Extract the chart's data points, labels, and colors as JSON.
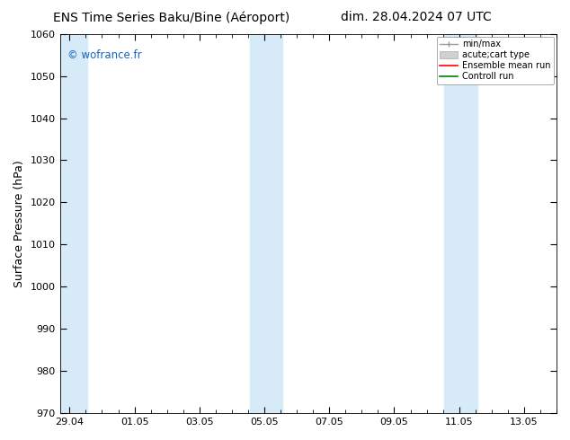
{
  "title_left": "ENS Time Series Baku/Bine (Aéroport)",
  "title_right": "dim. 28.04.2024 07 UTC",
  "ylabel": "Surface Pressure (hPa)",
  "ylim": [
    970,
    1060
  ],
  "yticks": [
    970,
    980,
    990,
    1000,
    1010,
    1020,
    1030,
    1040,
    1050,
    1060
  ],
  "xtick_labels": [
    "29.04",
    "01.05",
    "03.05",
    "05.05",
    "07.05",
    "09.05",
    "11.05",
    "13.05"
  ],
  "xtick_positions": [
    0,
    2,
    4,
    6,
    8,
    10,
    12,
    14
  ],
  "xlim": [
    -0.3,
    15.0
  ],
  "shaded_bands": [
    {
      "x_start": -0.3,
      "x_end": 0.55
    },
    {
      "x_start": 5.55,
      "x_end": 6.55
    },
    {
      "x_start": 11.55,
      "x_end": 12.55
    }
  ],
  "shade_color": "#d6eaf8",
  "background_color": "#ffffff",
  "plot_bg_color": "#ffffff",
  "watermark": "© wofrance.fr",
  "watermark_color": "#1565c0",
  "title_fontsize": 10,
  "tick_fontsize": 8,
  "ylabel_fontsize": 9,
  "legend_fontsize": 7
}
